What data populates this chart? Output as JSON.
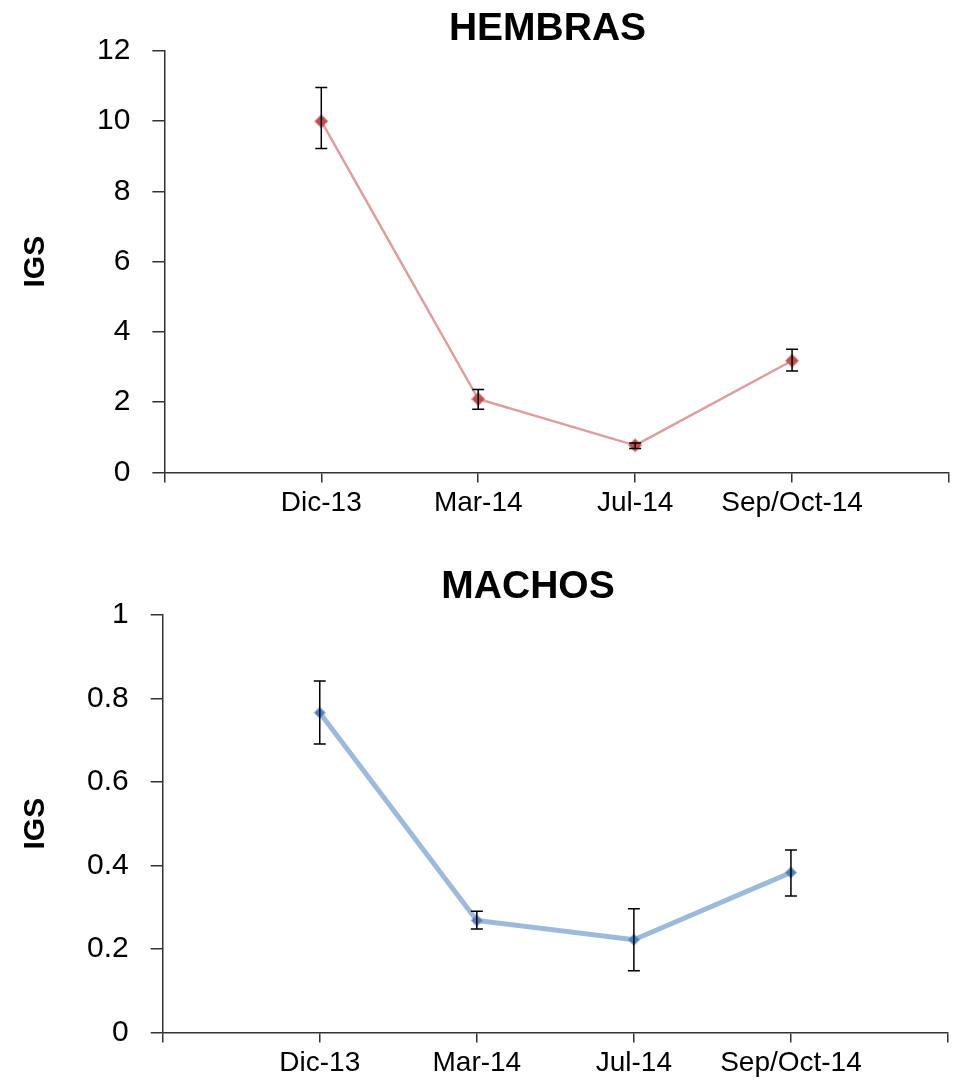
{
  "chart_data": [
    {
      "type": "line",
      "title": "HEMBRAS",
      "ylabel": "IGS",
      "categories": [
        null,
        "Dic-13",
        "Mar-14",
        "Jul-14",
        "Sep/Oct-14",
        null
      ],
      "series": [
        {
          "color": "#c0504d",
          "values": [
            null,
            10,
            2.09,
            0.77,
            3.18,
            null
          ],
          "errors": [
            null,
            [
              9.22,
              10.96
            ],
            [
              1.8,
              2.36
            ],
            [
              0.68,
              0.84
            ],
            [
              2.89,
              3.51
            ],
            null
          ]
        }
      ],
      "ylim": [
        0,
        12
      ],
      "yticks": [
        0,
        2,
        4,
        6,
        8,
        10,
        12
      ],
      "marker": "diamond",
      "line_style": "solid"
    },
    {
      "type": "line",
      "title": "MACHOS",
      "ylabel": "IGS",
      "categories": [
        null,
        "Dic-13",
        "Mar-14",
        "Jul-14",
        "Sep/Oct-14",
        null
      ],
      "series": [
        {
          "color": "#4f81bd",
          "values": [
            null,
            0.766,
            0.268,
            0.222,
            0.383,
            null
          ],
          "errors": [
            null,
            [
              0.691,
              0.842
            ],
            [
              0.248,
              0.29
            ],
            [
              0.148,
              0.296
            ],
            [
              0.327,
              0.437
            ],
            null
          ]
        }
      ],
      "ylim": [
        0,
        1
      ],
      "yticks": [
        0,
        0.2,
        0.4,
        0.6,
        0.8,
        1
      ],
      "marker": "diamond",
      "line_style": "solid"
    }
  ]
}
